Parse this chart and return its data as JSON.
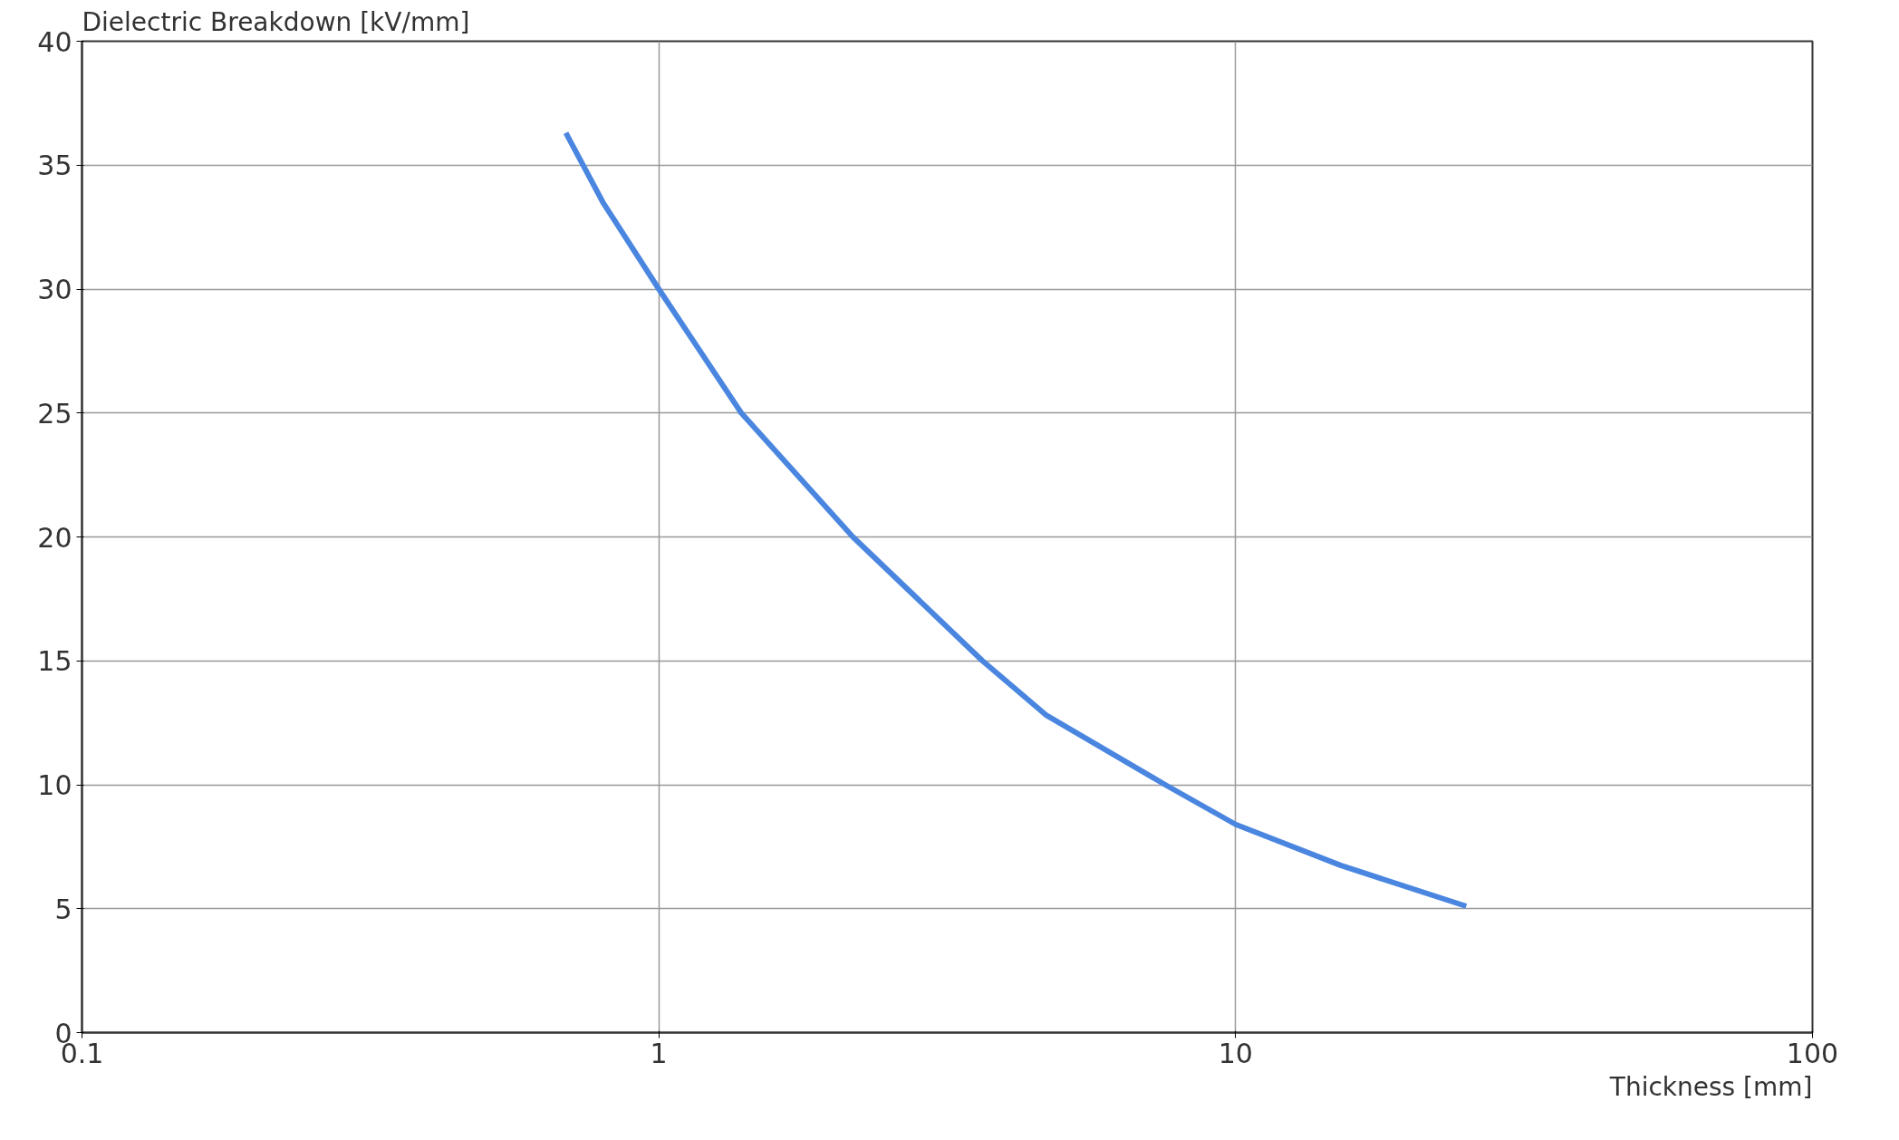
{
  "chart_data": {
    "type": "line",
    "xlabel": "Thickness [mm]",
    "ylabel": "Dielectric Breakdown [kV/mm]",
    "log": "x",
    "grid": true,
    "xlim": [
      0.1,
      100
    ],
    "xticks": [
      0.1,
      1,
      10,
      100
    ],
    "ylim": [
      0,
      40
    ],
    "yticks": [
      0,
      5,
      10,
      15,
      20,
      25,
      30,
      35,
      40
    ],
    "line_style": "solid",
    "series": [
      {
        "color": "#4a86e0",
        "x": [
          0.69,
          0.8,
          1,
          1.39,
          2.17,
          3.64,
          4.7,
          7.55,
          10,
          15.2,
          25.1
        ],
        "values": [
          36.3,
          33.5,
          30,
          25,
          20,
          15,
          12.8,
          10,
          8.4,
          6.75,
          5.1
        ]
      }
    ]
  }
}
